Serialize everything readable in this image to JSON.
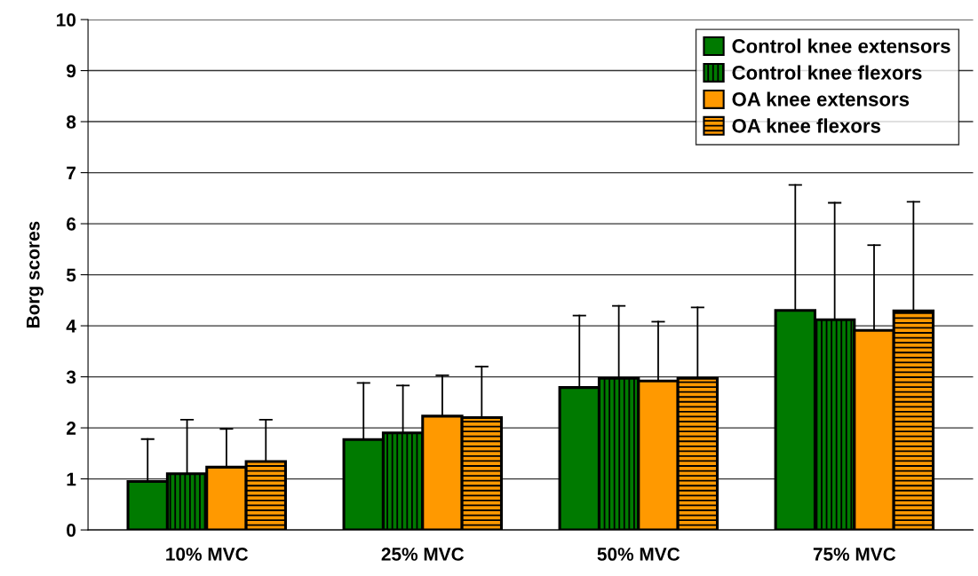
{
  "chart_data": {
    "type": "bar",
    "ylabel": "Borg scores",
    "categories": [
      "10% MVC",
      "25% MVC",
      "50% MVC",
      "75% MVC"
    ],
    "series": [
      {
        "name": "Control knee extensors",
        "color": "#007a00",
        "values": [
          0.95,
          1.77,
          2.79,
          4.3
        ],
        "errors": [
          [
            0.95,
            1.78
          ],
          [
            1.77,
            2.88
          ],
          [
            2.79,
            4.2
          ],
          [
            4.3,
            6.76
          ]
        ]
      },
      {
        "name": "Control knee flexors",
        "color": "#007a00",
        "values": [
          1.1,
          1.9,
          2.97,
          4.12
        ],
        "errors": [
          [
            1.1,
            2.16
          ],
          [
            1.9,
            2.83
          ],
          [
            2.97,
            4.39
          ],
          [
            4.12,
            6.41
          ]
        ]
      },
      {
        "name": "OA knee extensors",
        "color": "#ff9900",
        "values": [
          1.23,
          2.23,
          2.92,
          3.91
        ],
        "errors": [
          [
            1.23,
            1.98
          ],
          [
            2.23,
            3.03
          ],
          [
            2.92,
            4.08
          ],
          [
            3.91,
            5.58
          ]
        ]
      },
      {
        "name": "OA knee flexors",
        "color": "#ff9900",
        "values": [
          1.34,
          2.2,
          2.97,
          4.29
        ],
        "errors": [
          [
            1.34,
            2.16
          ],
          [
            2.2,
            3.2
          ],
          [
            2.97,
            4.36
          ],
          [
            4.29,
            6.43
          ]
        ]
      }
    ],
    "ylim": [
      0,
      10
    ],
    "yticks": [
      0,
      1,
      2,
      3,
      4,
      5,
      6,
      7,
      8,
      9,
      10
    ],
    "grid": "y",
    "legend": "top right"
  }
}
